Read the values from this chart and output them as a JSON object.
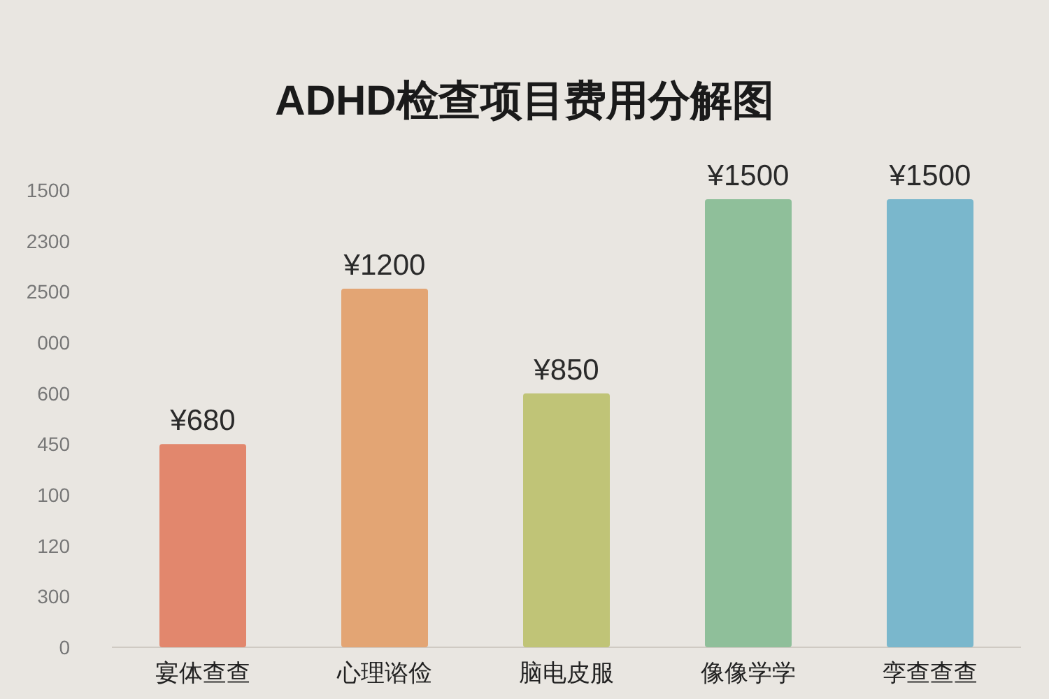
{
  "chart_data": {
    "type": "bar",
    "title": "ADHD检查项目费用分解图",
    "categories": [
      "宴体查查",
      "心理谘俭",
      "脑电皮服",
      "像像学学",
      "孪查查查"
    ],
    "values": [
      680,
      1200,
      850,
      1500,
      1500
    ],
    "colors": [
      "#e2876d",
      "#e3a574",
      "#c0c477",
      "#8fbf9a",
      "#7ab7cc"
    ],
    "value_labels": [
      "¥680",
      "¥1200",
      "¥850",
      "¥1500",
      "¥1500"
    ],
    "annotations": [
      "1500",
      "2300",
      "2500",
      "000",
      "600",
      "450",
      "100",
      "120",
      "300",
      "0"
    ]
  }
}
